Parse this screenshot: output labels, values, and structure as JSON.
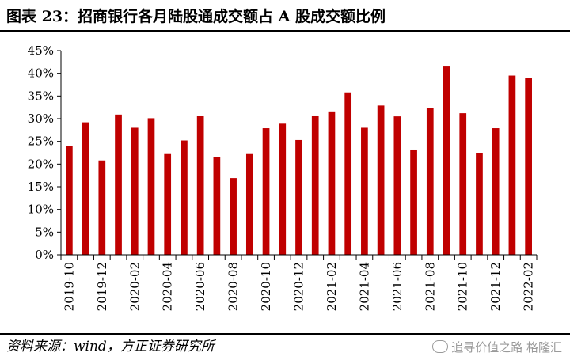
{
  "title": "图表 23：招商银行各月陆股通成交额占 A 股成交额比例",
  "source": "资料来源：wind，方正证券研究所",
  "watermark": "追寻价值之路 格隆汇",
  "colors": {
    "bar": "#C00000",
    "axis": "#000000"
  },
  "chart_data": {
    "type": "bar",
    "categories": [
      "2019-10",
      "2019-11",
      "2019-12",
      "2020-01",
      "2020-02",
      "2020-03",
      "2020-04",
      "2020-05",
      "2020-06",
      "2020-07",
      "2020-08",
      "2020-09",
      "2020-10",
      "2020-11",
      "2020-12",
      "2021-01",
      "2021-02",
      "2021-03",
      "2021-04",
      "2021-05",
      "2021-06",
      "2021-07",
      "2021-08",
      "2021-09",
      "2021-10",
      "2021-11",
      "2021-12",
      "2022-01",
      "2022-02"
    ],
    "tick_labels": [
      "2019-10",
      "2019-12",
      "2020-02",
      "2020-04",
      "2020-06",
      "2020-08",
      "2020-10",
      "2020-12",
      "2021-02",
      "2021-04",
      "2021-06",
      "2021-08",
      "2021-10",
      "2021-12",
      "2022-02"
    ],
    "values": [
      24.0,
      29.2,
      20.8,
      30.9,
      28.0,
      30.1,
      22.2,
      25.2,
      30.6,
      21.6,
      16.9,
      22.2,
      27.9,
      28.9,
      25.3,
      30.7,
      31.6,
      35.8,
      28.0,
      32.9,
      30.5,
      23.2,
      32.4,
      41.5,
      31.2,
      22.4,
      27.9,
      39.5,
      39.0
    ],
    "ylim": [
      0,
      45
    ],
    "yticks": [
      "0%",
      "5%",
      "10%",
      "15%",
      "20%",
      "25%",
      "30%",
      "35%",
      "40%",
      "45%"
    ],
    "unit": "%",
    "grid": false,
    "legend": "none"
  }
}
